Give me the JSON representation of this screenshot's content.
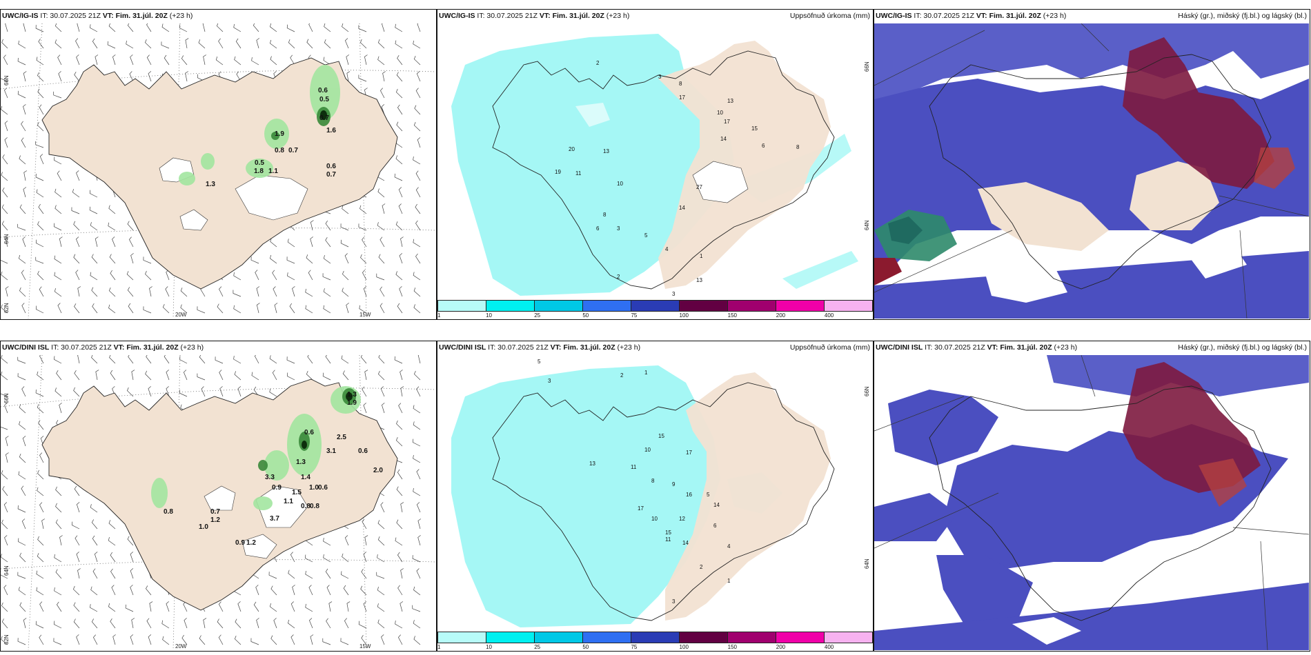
{
  "rows": [
    {
      "model": "UWC/IG-IS",
      "it": "IT: 30.07.2025 21Z",
      "vt_label": "VT:",
      "vt_value": "Fim. 31.júl. 20Z",
      "lead": "(+23 h)",
      "rain_title": "Uppsöfnuð úrkoma (mm)",
      "cloud_title": "Háský (gr.), miðský (fj.bl.) og lágský (bl.)",
      "lat_labels": [
        "66N",
        "64N",
        "62N"
      ],
      "lon_labels": [
        "20W",
        "15W"
      ],
      "rain_lat_labels": [
        "66N",
        "64N"
      ],
      "wind_values": [
        "0.6",
        "0.5",
        "0.7",
        "1.6",
        "1.9",
        "0.8",
        "0.7",
        "0.5",
        "1.8",
        "1.1",
        "0.6",
        "0.7",
        "1.3"
      ],
      "rain_values": [
        "2",
        "3",
        "8",
        "17",
        "13",
        "10",
        "17",
        "15",
        "14",
        "6",
        "8",
        "20",
        "13",
        "19",
        "11",
        "10",
        "27",
        "14",
        "8",
        "3",
        "6",
        "5",
        "4",
        "1",
        "2",
        "13",
        "3"
      ]
    },
    {
      "model": "UWC/DINI ISL",
      "it": "IT: 30.07.2025 21Z",
      "vt_label": "VT:",
      "vt_value": "Fim. 31.júl. 20Z",
      "lead": "(+23 h)",
      "rain_title": "Uppsöfnuð úrkoma (mm)",
      "cloud_title": "Háský (gr.), miðský (fj.bl.) og lágský (bl.)",
      "lat_labels": [
        "66N",
        "64N",
        "62N"
      ],
      "lon_labels": [
        "20W",
        "15W"
      ],
      "rain_lat_labels": [
        "66N",
        "64N"
      ],
      "wind_values": [
        "1.3",
        "1.9",
        "0.6",
        "2.5",
        "3.1",
        "0.6",
        "2.0",
        "1.3",
        "3.3",
        "0.9",
        "1.4",
        "1.0",
        "0.6",
        "1.5",
        "1.1",
        "0.8",
        "0.8",
        "3.7",
        "0.8",
        "0.7",
        "1.2",
        "1.0",
        "0.9",
        "1.2"
      ],
      "rain_values": [
        "5",
        "2",
        "1",
        "3",
        "15",
        "10",
        "17",
        "13",
        "11",
        "8",
        "9",
        "16",
        "5",
        "14",
        "17",
        "12",
        "11",
        "15",
        "10",
        "14",
        "6",
        "4",
        "2",
        "1",
        "3"
      ]
    }
  ],
  "colorbar": {
    "labels": [
      "1",
      "10",
      "25",
      "50",
      "75",
      "100",
      "150",
      "200",
      "400"
    ],
    "colors": [
      "#b7fbf8",
      "#00f0f0",
      "#00c8e6",
      "#2f6ff2",
      "#2a3cb5",
      "#620042",
      "#a0006e",
      "#f000a8",
      "#f7b2f0"
    ]
  },
  "colors": {
    "land": "#f2e2d2",
    "rain_fill": "#a5f7f5",
    "cloud_low": "#4b4fc0",
    "cloud_high": "#7d1a3f",
    "cloud_mid": "#5fa3e6"
  }
}
